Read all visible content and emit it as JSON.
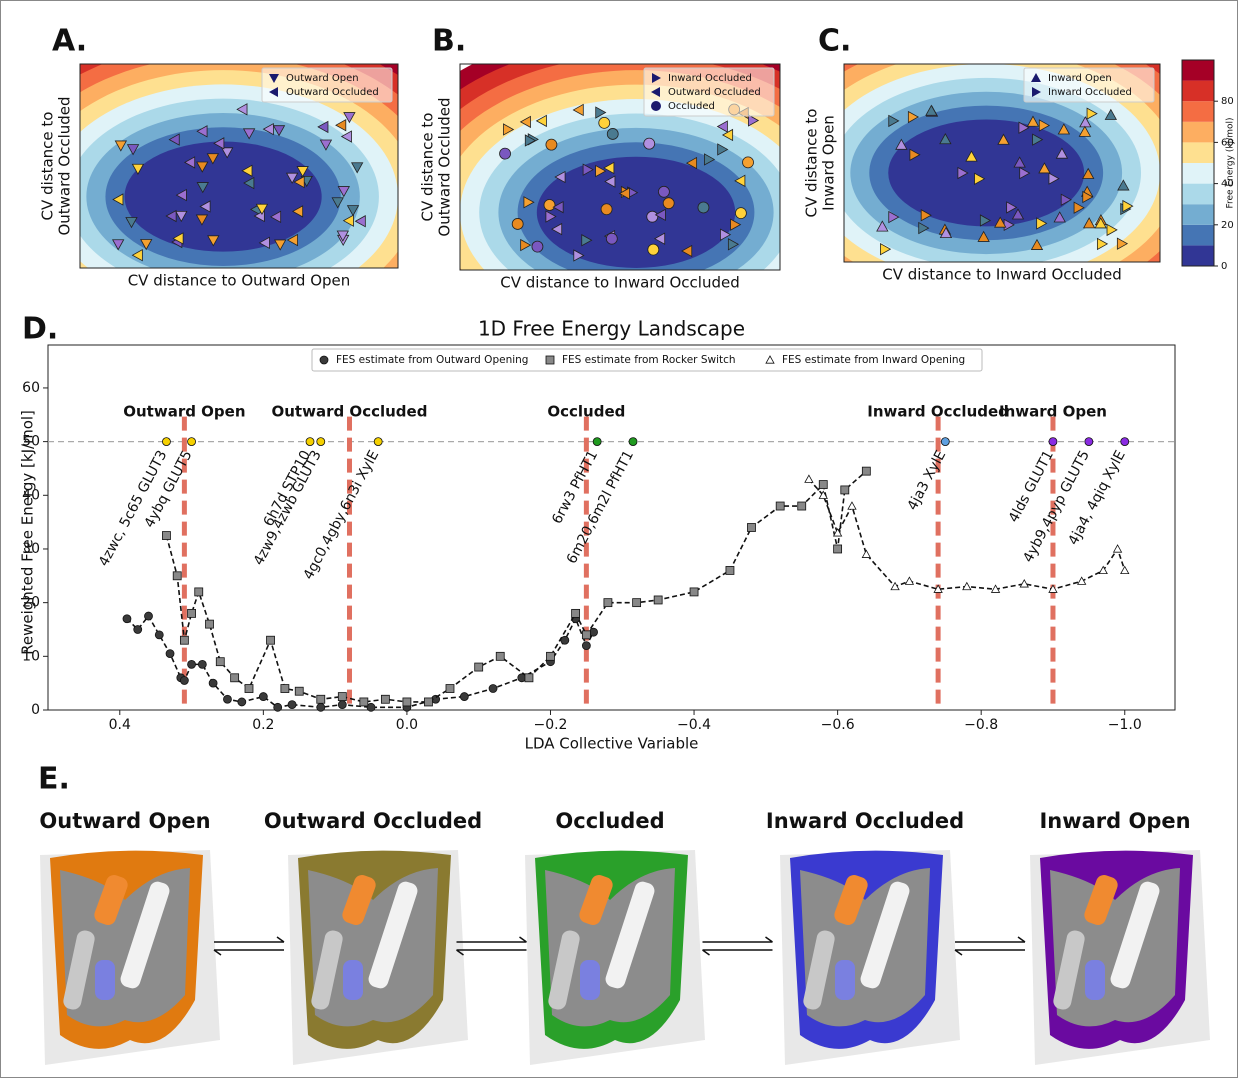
{
  "panel_labels": [
    "A.",
    "B.",
    "C.",
    "D.",
    "E."
  ],
  "chart_data": [
    {
      "type": "heatmap",
      "xlabel": "CV distance to Outward Open",
      "ylabel": [
        "CV distance to",
        "Outward Occluded"
      ],
      "legend": [
        {
          "name": "Outward Open",
          "marker": "down",
          "color": "#1a1a6e"
        },
        {
          "name": "Outward Occluded",
          "marker": "left",
          "color": "#1a1a6e"
        }
      ]
    },
    {
      "type": "heatmap",
      "xlabel": "CV distance to Inward Occluded",
      "ylabel": [
        "CV distance to",
        "Outward Occluded"
      ],
      "legend": [
        {
          "name": "Inward Occluded",
          "marker": "right",
          "color": "#1a1a6e"
        },
        {
          "name": "Outward Occluded",
          "marker": "left",
          "color": "#1a1a6e"
        },
        {
          "name": "Occluded",
          "marker": "circle",
          "color": "#1a1a6e"
        }
      ]
    },
    {
      "type": "heatmap",
      "xlabel": "CV distance to Inward Occluded",
      "ylabel": [
        "CV distance to",
        "Inward Open"
      ],
      "legend": [
        {
          "name": "Inward Open",
          "marker": "up",
          "color": "#1a1a6e"
        },
        {
          "name": "Inward Occluded",
          "marker": "right",
          "color": "#1a1a6e"
        }
      ]
    },
    {
      "type": "colorbar",
      "label": "Free Energy (kJ/mol)",
      "clim": [
        0,
        100
      ],
      "ticks": [
        0,
        20,
        40,
        60,
        80
      ],
      "colors": [
        "#313695",
        "#4575b4",
        "#74add1",
        "#abd9e9",
        "#e0f3f8",
        "#fee090",
        "#fdae61",
        "#f46d43",
        "#d73027",
        "#a50026"
      ]
    },
    {
      "type": "line",
      "title": "1D Free Energy Landscape",
      "xlabel": "LDA Collective Variable",
      "ylabel": "Reweighted Free Energy [kJ/mol]",
      "xlim": [
        0.5,
        -1.07
      ],
      "ylim": [
        0,
        68
      ],
      "xticks": [
        0.4,
        0.2,
        {
          "value": 0,
          "label": "0.0"
        },
        {
          "value": -0.2,
          "label": "−0.2"
        },
        {
          "value": -0.4,
          "label": "−0.4"
        },
        {
          "value": -0.6,
          "label": "−0.6"
        },
        {
          "value": -0.8,
          "label": "−0.8"
        },
        {
          "value": -1.0,
          "label": "−1.0"
        }
      ],
      "yticks": [
        0,
        10,
        20,
        30,
        40,
        50,
        60
      ],
      "reference_y": 50,
      "series": [
        {
          "name": "FES estimate from Outward Opening",
          "marker": "circle",
          "color": "#3a3a3a",
          "x": [
            0.39,
            0.375,
            0.36,
            0.345,
            0.33,
            0.315,
            0.31,
            0.3,
            0.285,
            0.27,
            0.25,
            0.23,
            0.2,
            0.18,
            0.16,
            0.12,
            0.09,
            0.05,
            0.0,
            -0.04,
            -0.08,
            -0.12,
            -0.16,
            -0.2,
            -0.22,
            -0.235,
            -0.25,
            -0.26
          ],
          "values": [
            17,
            15,
            17.5,
            14,
            10.5,
            6,
            5.5,
            8.5,
            8.5,
            5,
            2,
            1.5,
            2.5,
            0.5,
            1,
            0.5,
            1,
            0.5,
            0.5,
            2,
            2.5,
            4,
            6,
            9,
            13,
            17,
            12,
            14.5
          ]
        },
        {
          "name": "FES estimate from Rocker Switch",
          "marker": "square",
          "color": "#888888",
          "x": [
            0.335,
            0.32,
            0.31,
            0.3,
            0.29,
            0.275,
            0.26,
            0.24,
            0.22,
            0.19,
            0.17,
            0.15,
            0.12,
            0.09,
            0.06,
            0.03,
            0.0,
            -0.03,
            -0.06,
            -0.1,
            -0.13,
            -0.17,
            -0.2,
            -0.235,
            -0.25,
            -0.28,
            -0.32,
            -0.35,
            -0.4,
            -0.45,
            -0.48,
            -0.52,
            -0.55,
            -0.58,
            -0.6,
            -0.61,
            -0.64
          ],
          "values": [
            32.5,
            25,
            13,
            18,
            22,
            16,
            9,
            6,
            4,
            13,
            4,
            3.5,
            2,
            2.5,
            1.5,
            2,
            1.5,
            1.5,
            4,
            8,
            10,
            6,
            10,
            18,
            14,
            20,
            20,
            20.5,
            22,
            26,
            34,
            38,
            38,
            42,
            30,
            41,
            44.5
          ]
        },
        {
          "name": "FES estimate from Inward Opening",
          "marker": "triangle",
          "color": "#ffffff",
          "x": [
            -0.56,
            -0.58,
            -0.6,
            -0.62,
            -0.64,
            -0.68,
            -0.7,
            -0.74,
            -0.78,
            -0.82,
            -0.86,
            -0.9,
            -0.94,
            -0.97,
            -0.99,
            -1.0
          ],
          "values": [
            43,
            40,
            33,
            38,
            29,
            23,
            24,
            22.5,
            23,
            22.5,
            23.5,
            22.5,
            24,
            26,
            30,
            26
          ]
        }
      ],
      "states": [
        {
          "label": "Outward Open",
          "x": 0.31
        },
        {
          "label": "Outward Occluded",
          "x": 0.08
        },
        {
          "label": "Occluded",
          "x": -0.25
        },
        {
          "label": "Inward Occluded",
          "x": -0.74
        },
        {
          "label": "Inward Open",
          "x": -0.9
        }
      ],
      "structures": [
        {
          "label": "4zwc, 5c65 GLUT3",
          "x": 0.335,
          "y": 50,
          "color": "#f5d000"
        },
        {
          "label": "4ybq GLUT5",
          "x": 0.3,
          "y": 50,
          "color": "#f5d000"
        },
        {
          "label": "6h7d STP10",
          "x": 0.135,
          "y": 50,
          "color": "#f5d000"
        },
        {
          "label": "4zw9,4zwb GLUT3",
          "x": 0.12,
          "y": 50,
          "color": "#f5d000"
        },
        {
          "label": "4gc0,4gby,6n3i XylE",
          "x": 0.04,
          "y": 50,
          "color": "#f5d000"
        },
        {
          "label": "6rw3 PfHT1",
          "x": -0.265,
          "y": 50,
          "color": "#1f9a1f"
        },
        {
          "label": "6m20,6m2l PfHT1",
          "x": -0.315,
          "y": 50,
          "color": "#1f9a1f"
        },
        {
          "label": "4ja3 XylE",
          "x": -0.75,
          "y": 50,
          "color": "#5fa0e0"
        },
        {
          "label": "4lds GLUT1",
          "x": -0.9,
          "y": 50,
          "color": "#8a2be2"
        },
        {
          "label": "4yb9,4pyp GLUT5",
          "x": -0.95,
          "y": 50,
          "color": "#8a2be2"
        },
        {
          "label": "4ja4, 4qiq XylE",
          "x": -1.0,
          "y": 50,
          "color": "#8a2be2"
        }
      ]
    }
  ],
  "panel_e": {
    "states": [
      "Outward Open",
      "Outward Occluded",
      "Occluded",
      "Inward Occluded",
      "Inward Open"
    ]
  }
}
